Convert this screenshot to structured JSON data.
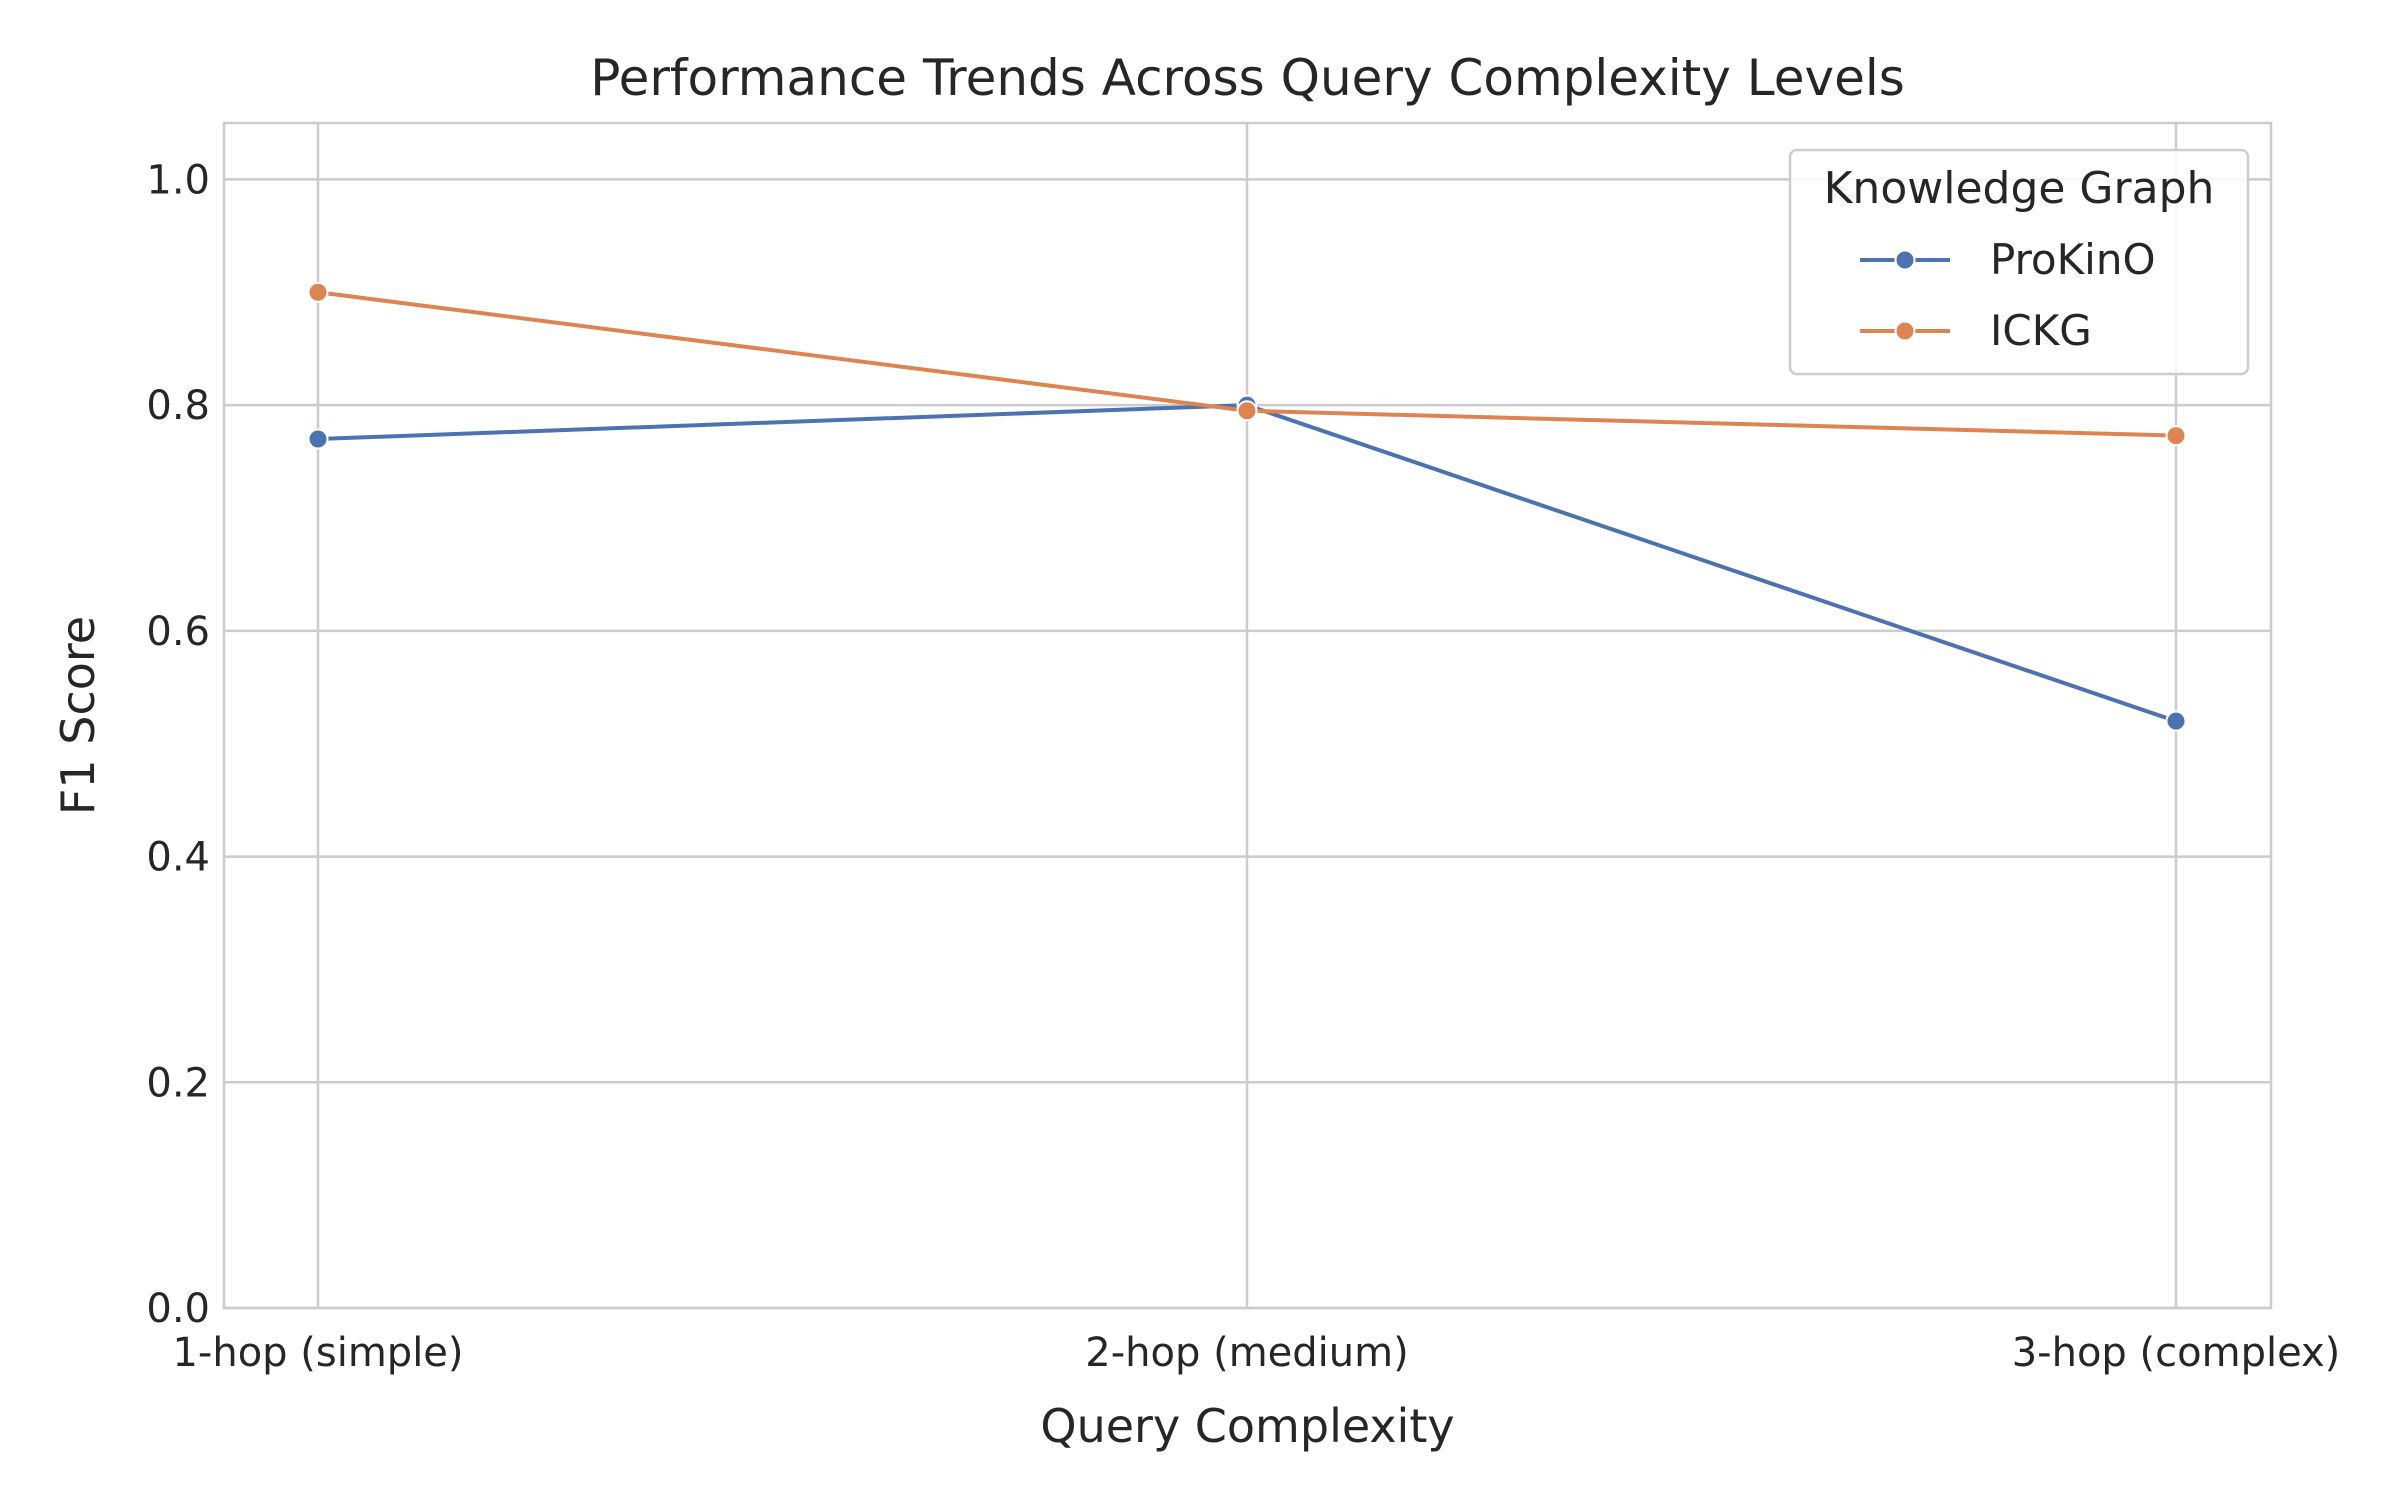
{
  "chart_data": {
    "type": "line",
    "title": "Performance Trends Across Query Complexity Levels",
    "xlabel": "Query Complexity",
    "ylabel": "F1 Score",
    "categories": [
      "1-hop (simple)",
      "2-hop (medium)",
      "3-hop (complex)"
    ],
    "ylim": [
      0,
      1.05
    ],
    "yticks": [
      0.0,
      0.2,
      0.4,
      0.6,
      0.8,
      1.0
    ],
    "ytick_labels": [
      "0.0",
      "0.2",
      "0.4",
      "0.6",
      "0.8",
      "1.0"
    ],
    "grid": true,
    "legend": {
      "title": "Knowledge Graph",
      "placement": "top-right"
    },
    "series": [
      {
        "name": "ProKinO",
        "color": "#4c72b0",
        "values": [
          0.77,
          0.8,
          0.52
        ]
      },
      {
        "name": "ICKG",
        "color": "#dd8452",
        "values": [
          0.9,
          0.795,
          0.773
        ]
      }
    ]
  }
}
